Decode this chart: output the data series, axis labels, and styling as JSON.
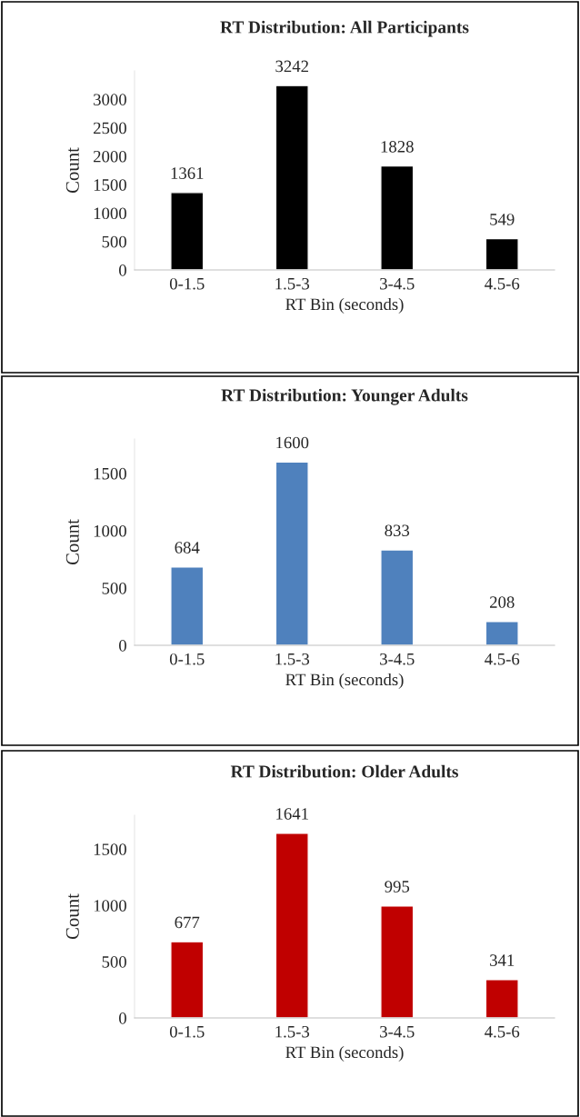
{
  "chart_data": [
    {
      "type": "bar",
      "title": "RT Distribution: All Participants",
      "xlabel": "RT Bin (seconds)",
      "ylabel": "Count",
      "categories": [
        "0-1.5",
        "1.5-3",
        "3-4.5",
        "4.5-6"
      ],
      "values": [
        1361,
        3242,
        1828,
        549
      ],
      "color": "#000000",
      "ylim": [
        0,
        3500
      ],
      "yticks": [
        0,
        500,
        1000,
        1500,
        2000,
        2500,
        3000
      ],
      "data_labels": true,
      "grid": false,
      "legend": false
    },
    {
      "type": "bar",
      "title": "RT Distribution: Younger Adults",
      "xlabel": "RT Bin (seconds)",
      "ylabel": "Count",
      "categories": [
        "0-1.5",
        "1.5-3",
        "3-4.5",
        "4.5-6"
      ],
      "values": [
        684,
        1600,
        833,
        208
      ],
      "color": "#4f81bd",
      "ylim": [
        0,
        1800
      ],
      "yticks": [
        0,
        500,
        1000,
        1500
      ],
      "data_labels": true,
      "grid": false,
      "legend": false
    },
    {
      "type": "bar",
      "title": "RT Distribution: Older Adults",
      "xlabel": "RT Bin (seconds)",
      "ylabel": "Count",
      "categories": [
        "0-1.5",
        "1.5-3",
        "3-4.5",
        "4.5-6"
      ],
      "values": [
        677,
        1641,
        995,
        341
      ],
      "color": "#c00000",
      "ylim": [
        0,
        1800
      ],
      "yticks": [
        0,
        500,
        1000,
        1500
      ],
      "data_labels": true,
      "grid": false,
      "legend": false
    }
  ]
}
